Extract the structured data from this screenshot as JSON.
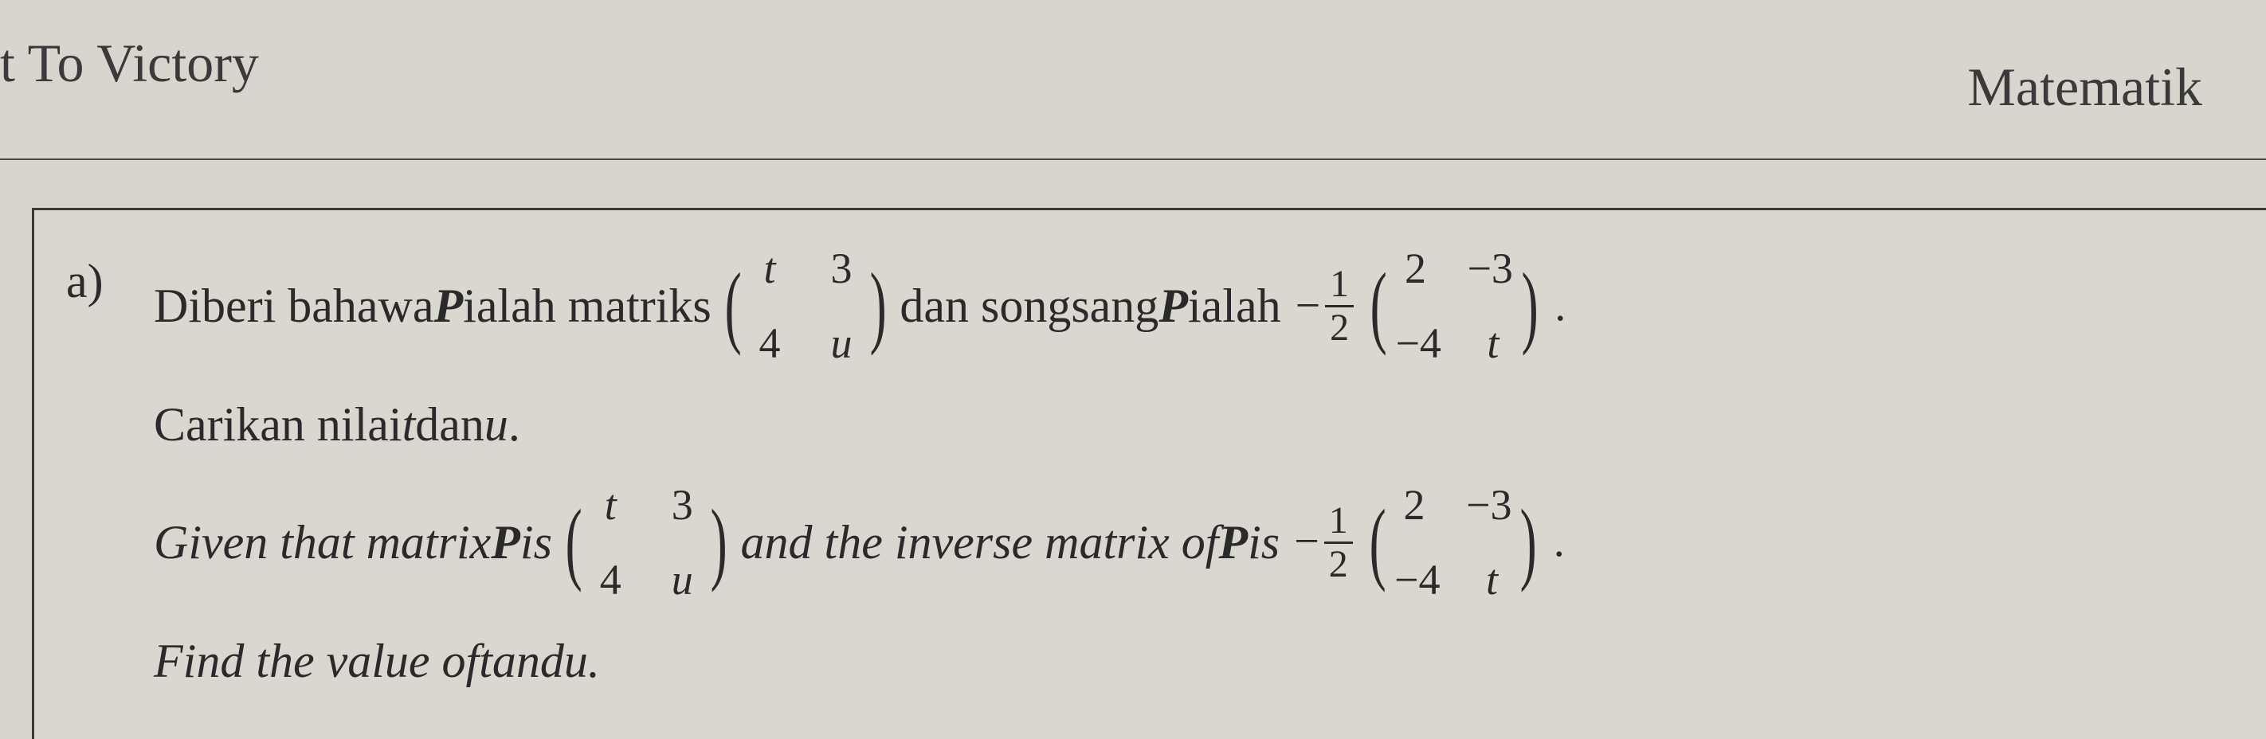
{
  "header": {
    "left": "t To Victory",
    "right": "Matematik"
  },
  "question": {
    "label": "a)",
    "line1": {
      "bm_prefix": "Diberi bahawa ",
      "P": "P",
      "bm_mid": " ialah matriks ",
      "bm_suffix": " dan songsang ",
      "bm_end": " ialah  "
    },
    "line2": {
      "bm": "Carikan nilai ",
      "t": "t",
      "and": " dan ",
      "u": "u",
      "end": "."
    },
    "line3": {
      "en_prefix": "Given that matrix ",
      "P": "P",
      "en_mid": " is ",
      "en_suffix": " and the inverse matrix of ",
      "en_end": " is  "
    },
    "line4": {
      "en": "Find the value of ",
      "t": "t",
      "and": " and ",
      "u": "u",
      "end": "."
    },
    "matrixP": {
      "r1c1": "t",
      "r1c2": "3",
      "r2c1": "4",
      "r2c2": "u"
    },
    "scalar": {
      "minus": "−",
      "num": "1",
      "den": "2"
    },
    "matrixInv": {
      "r1c1": "2",
      "r1c2": "−3",
      "r2c1": "−4",
      "r2c2": "t"
    },
    "period": "."
  },
  "style": {
    "background_color": "#d8d4ce",
    "text_color": "#2a2a2a",
    "border_color": "#3a3a3a",
    "font_family": "Times New Roman",
    "header_fontsize": 68,
    "body_fontsize": 60,
    "matrix_cell_fontsize": 54,
    "fraction_fontsize": 48
  }
}
